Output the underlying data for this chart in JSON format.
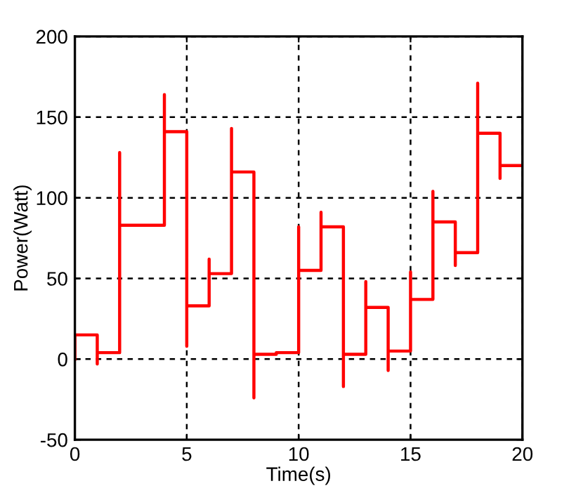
{
  "chart_data": {
    "type": "line",
    "xlabel": "Time(s)",
    "ylabel": "Power(Watt)",
    "xlim": [
      0,
      20
    ],
    "xticks": [
      0,
      5,
      10,
      15,
      20
    ],
    "ylim": [
      -50,
      200
    ],
    "yticks": [
      -50,
      0,
      50,
      100,
      150,
      200
    ],
    "grid": true,
    "marker": "none",
    "line_style": "solid",
    "series": [
      {
        "color": "#ff0000",
        "x": [
          0,
          0,
          1,
          1,
          1,
          2,
          2,
          2,
          4,
          4,
          4,
          5,
          5,
          5,
          6,
          6,
          6,
          7,
          7,
          7,
          8,
          8,
          8,
          9,
          9,
          10,
          10,
          10,
          11,
          11,
          11,
          12,
          12,
          12,
          13,
          13,
          13,
          14,
          14,
          14,
          15,
          15,
          15,
          16,
          16,
          16,
          17,
          17,
          17,
          18,
          18,
          18,
          19,
          19,
          19,
          20
        ],
        "values": [
          0,
          15,
          15,
          -3,
          4,
          4,
          128,
          83,
          83,
          164,
          141,
          141,
          8,
          33,
          33,
          62,
          53,
          53,
          143,
          116,
          116,
          -24,
          3,
          3,
          4,
          4,
          82,
          55,
          55,
          91,
          82,
          82,
          -17,
          3,
          3,
          48,
          32,
          32,
          -7,
          5,
          5,
          54,
          37,
          37,
          104,
          85,
          85,
          58,
          66,
          66,
          171,
          140,
          140,
          112,
          120,
          120
        ]
      }
    ]
  }
}
